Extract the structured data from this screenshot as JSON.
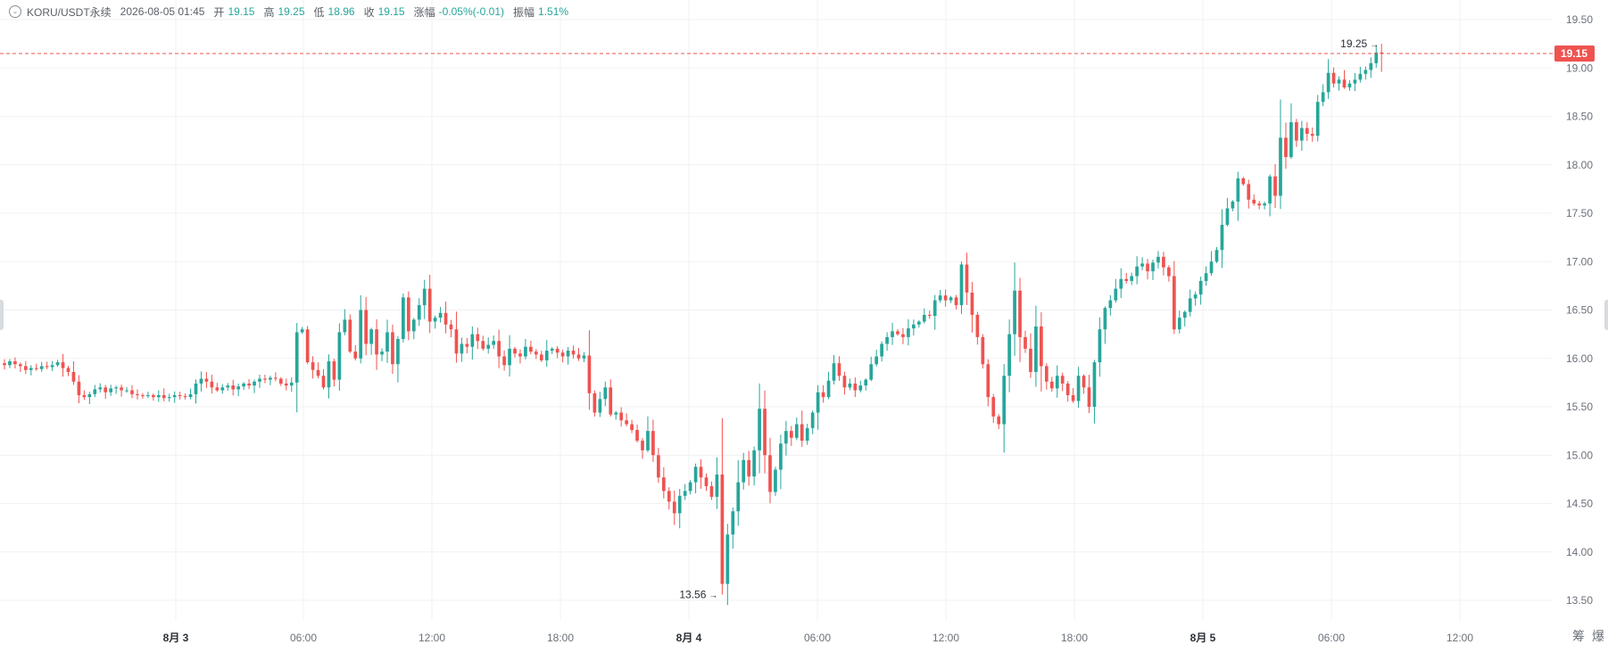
{
  "header": {
    "symbol": "KORU/USDT永续",
    "datetime": "2026-08-05 01:45",
    "open_label": "开",
    "open": "19.15",
    "high_label": "高",
    "high": "19.25",
    "low_label": "低",
    "low": "18.96",
    "close_label": "收",
    "close": "19.15",
    "change_label": "涨幅",
    "change": "-0.05%(-0.01)",
    "amplitude_label": "振幅",
    "amplitude": "1.51%"
  },
  "chips": [
    "筹",
    "爆"
  ],
  "chart_data": {
    "type": "candlestick",
    "y_axis": {
      "ticks": [
        "19.50",
        "19.00",
        "18.50",
        "18.00",
        "17.50",
        "17.00",
        "16.50",
        "16.00",
        "15.50",
        "15.00",
        "14.50",
        "14.00",
        "13.50"
      ],
      "range": [
        13.35,
        19.6
      ]
    },
    "x_axis": {
      "labels": [
        "8月 3",
        "06:00",
        "12:00",
        "18:00",
        "8月 4",
        "06:00",
        "12:00",
        "18:00",
        "8月 5",
        "06:00",
        "12:00"
      ],
      "bold_labels": [
        "8月 3",
        "8月 4",
        "8月 5"
      ]
    },
    "last_price": "19.15",
    "annotations": {
      "high": "19.25",
      "low": "13.56"
    },
    "colors": {
      "up": "#26a69a",
      "down": "#ef5350",
      "grid": "#f0f1f3",
      "price_line": "#ef5350",
      "axis_text": "#6b7079"
    },
    "candle_interval_min": 15,
    "candles_close": [
      15.93,
      15.97,
      15.94,
      15.92,
      15.88,
      15.9,
      15.89,
      15.92,
      15.91,
      15.93,
      15.96,
      15.9,
      15.86,
      15.76,
      15.62,
      15.6,
      15.63,
      15.68,
      15.7,
      15.65,
      15.69,
      15.7,
      15.67,
      15.67,
      15.63,
      15.62,
      15.61,
      15.62,
      15.6,
      15.62,
      15.59,
      15.6,
      15.62,
      15.61,
      15.6,
      15.63,
      15.74,
      15.79,
      15.76,
      15.7,
      15.67,
      15.7,
      15.72,
      15.68,
      15.71,
      15.74,
      15.72,
      15.76,
      15.79,
      15.78,
      15.8,
      15.79,
      15.74,
      15.72,
      15.75,
      16.27,
      16.3,
      15.96,
      15.88,
      15.82,
      15.7,
      15.97,
      15.78,
      16.27,
      16.4,
      16.07,
      16.0,
      16.5,
      16.15,
      16.3,
      16.04,
      16.07,
      16.27,
      15.94,
      16.2,
      16.63,
      16.28,
      16.4,
      16.55,
      16.72,
      16.38,
      16.42,
      16.47,
      16.35,
      16.3,
      16.05,
      16.15,
      16.12,
      16.25,
      16.18,
      16.1,
      16.14,
      16.18,
      16.02,
      15.93,
      16.1,
      16.05,
      16.02,
      16.12,
      16.07,
      16.04,
      15.98,
      16.08,
      16.1,
      16.06,
      16.02,
      16.08,
      16.04,
      16.0,
      16.03,
      15.64,
      15.44,
      15.58,
      15.7,
      15.42,
      15.44,
      15.36,
      15.32,
      15.26,
      15.15,
      15.05,
      15.25,
      15.0,
      14.77,
      14.63,
      14.52,
      14.4,
      14.58,
      14.63,
      14.72,
      14.88,
      14.77,
      14.68,
      14.57,
      14.8,
      13.67,
      14.18,
      14.42,
      14.72,
      14.95,
      14.78,
      15.05,
      15.48,
      15.0,
      14.62,
      14.85,
      15.12,
      15.25,
      15.18,
      15.32,
      15.15,
      15.28,
      15.44,
      15.65,
      15.6,
      15.77,
      15.95,
      15.82,
      15.7,
      15.74,
      15.67,
      15.72,
      15.78,
      15.94,
      16.02,
      16.15,
      16.22,
      16.28,
      16.25,
      16.22,
      16.31,
      16.35,
      16.38,
      16.45,
      16.44,
      16.6,
      16.65,
      16.6,
      16.63,
      16.55,
      16.97,
      16.68,
      16.45,
      16.22,
      15.94,
      15.6,
      15.4,
      15.32,
      15.82,
      16.25,
      16.7,
      16.22,
      16.1,
      15.86,
      16.33,
      15.92,
      15.76,
      15.69,
      15.82,
      15.74,
      15.62,
      15.56,
      15.82,
      15.7,
      15.5,
      15.96,
      16.3,
      16.52,
      16.6,
      16.72,
      16.82,
      16.8,
      16.85,
      16.95,
      16.98,
      16.9,
      16.99,
      17.05,
      16.94,
      16.85,
      16.3,
      16.42,
      16.48,
      16.62,
      16.66,
      16.8,
      16.88,
      17.0,
      17.12,
      17.38,
      17.55,
      17.62,
      17.86,
      17.8,
      17.64,
      17.6,
      17.58,
      17.6,
      17.88,
      17.68,
      18.28,
      18.08,
      18.44,
      18.25,
      18.38,
      18.32,
      18.3,
      18.65,
      18.75,
      18.95,
      18.84,
      18.88,
      18.8,
      18.84,
      18.88,
      18.94,
      18.98,
      19.05,
      19.16,
      19.15
    ]
  }
}
